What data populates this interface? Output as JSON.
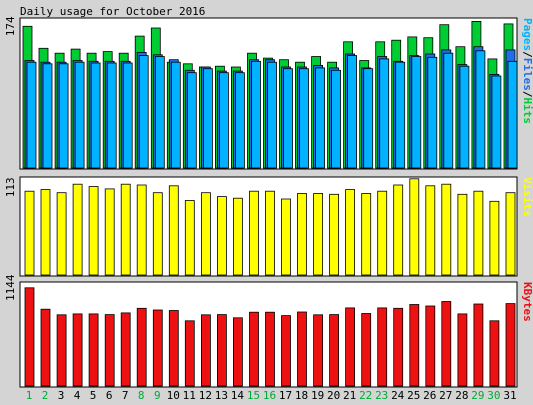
{
  "title": "Daily usage for October 2016",
  "colors": {
    "background": "#d4d4d4",
    "panel_bg": "#ffffff",
    "frame": "#000000",
    "hits": "#00cc33",
    "files": "#1f6fe8",
    "pages": "#00b2ff",
    "visits": "#ffff00",
    "kbytes": "#ee1111",
    "weekend_label": "#00aa33",
    "weekday_label": "#000000"
  },
  "chart_data": [
    {
      "type": "bar",
      "panel": "hits-files-pages",
      "title": "Daily usage for October 2016",
      "ytick_label": "174",
      "ytick_value": 174,
      "ylabel_parts": [
        "Pages",
        "/",
        "Files",
        "/",
        "Hits"
      ],
      "ylim": [
        0,
        183
      ],
      "categories": [
        "1",
        "2",
        "3",
        "4",
        "5",
        "6",
        "7",
        "8",
        "9",
        "10",
        "11",
        "12",
        "13",
        "14",
        "15",
        "16",
        "17",
        "18",
        "19",
        "20",
        "21",
        "22",
        "23",
        "24",
        "25",
        "26",
        "27",
        "28",
        "29",
        "30",
        "31"
      ],
      "weekend_days": [
        "1",
        "2",
        "8",
        "9",
        "15",
        "16",
        "22",
        "23",
        "29",
        "30"
      ],
      "series": [
        {
          "name": "Hits",
          "values": [
            174,
            147,
            141,
            146,
            141,
            143,
            141,
            162,
            172,
            130,
            128,
            124,
            125,
            124,
            141,
            135,
            133,
            130,
            137,
            130,
            155,
            132,
            155,
            157,
            161,
            160,
            176,
            149,
            180,
            134,
            177
          ]
        },
        {
          "name": "Files",
          "values": [
            132,
            130,
            130,
            132,
            131,
            131,
            131,
            142,
            139,
            133,
            120,
            124,
            119,
            119,
            133,
            133,
            124,
            124,
            126,
            123,
            140,
            123,
            137,
            131,
            138,
            140,
            145,
            127,
            149,
            115,
            145
          ]
        },
        {
          "name": "Pages",
          "values": [
            130,
            128,
            128,
            130,
            129,
            129,
            129,
            138,
            137,
            130,
            117,
            122,
            117,
            117,
            131,
            130,
            122,
            122,
            123,
            120,
            138,
            122,
            134,
            130,
            137,
            136,
            141,
            125,
            144,
            113,
            131
          ]
        }
      ]
    },
    {
      "type": "bar",
      "panel": "visits",
      "ytick_label": "113",
      "ytick_value": 113,
      "ylabel_parts": [
        "Visits"
      ],
      "ylim": [
        0,
        125
      ],
      "categories": [
        "1",
        "2",
        "3",
        "4",
        "5",
        "6",
        "7",
        "8",
        "9",
        "10",
        "11",
        "12",
        "13",
        "14",
        "15",
        "16",
        "17",
        "18",
        "19",
        "20",
        "21",
        "22",
        "23",
        "24",
        "25",
        "26",
        "27",
        "28",
        "29",
        "30",
        "31"
      ],
      "series": [
        {
          "name": "Visits",
          "values": [
            108,
            110,
            106,
            117,
            114,
            111,
            117,
            116,
            106,
            115,
            96,
            106,
            101,
            99,
            108,
            108,
            98,
            105,
            105,
            104,
            110,
            105,
            108,
            116,
            124,
            115,
            117,
            104,
            108,
            95,
            106
          ]
        }
      ]
    },
    {
      "type": "bar",
      "panel": "kbytes",
      "ytick_label": "1144",
      "ytick_value": 1144,
      "ylabel_parts": [
        "KBytes"
      ],
      "ylim": [
        0,
        1200
      ],
      "categories": [
        "1",
        "2",
        "3",
        "4",
        "5",
        "6",
        "7",
        "8",
        "9",
        "10",
        "11",
        "12",
        "13",
        "14",
        "15",
        "16",
        "17",
        "18",
        "19",
        "20",
        "21",
        "22",
        "23",
        "24",
        "25",
        "26",
        "27",
        "28",
        "29",
        "30",
        "31"
      ],
      "series": [
        {
          "name": "KBytes",
          "values": [
            1144,
            895,
            830,
            840,
            840,
            832,
            852,
            905,
            885,
            880,
            760,
            830,
            832,
            795,
            860,
            860,
            820,
            862,
            830,
            832,
            910,
            845,
            910,
            905,
            950,
            932,
            985,
            840,
            955,
            760,
            960
          ]
        }
      ]
    }
  ]
}
